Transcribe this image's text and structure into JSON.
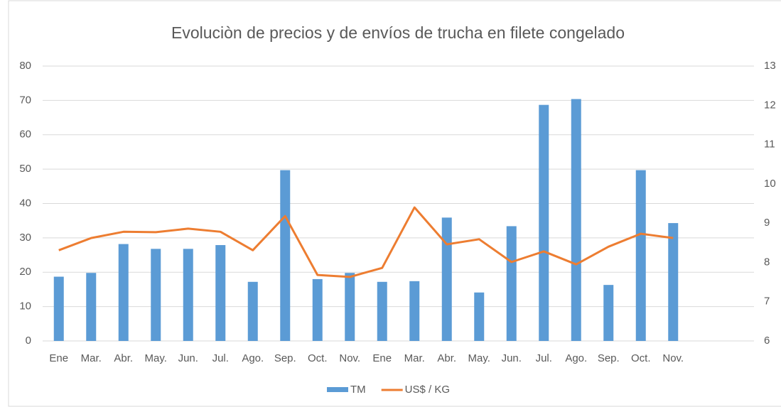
{
  "chart_data": {
    "type": "bar-line",
    "title": "Evoluciòn de precios y de envíos de trucha en filete congelado",
    "categories": [
      "Ene",
      "Mar.",
      "Abr.",
      "May.",
      "Jun.",
      "Jul.",
      "Ago.",
      "Sep.",
      "Oct.",
      "Nov.",
      "Ene",
      "Mar.",
      "Abr.",
      "May.",
      "Jun.",
      "Jul.",
      "Ago.",
      "Sep.",
      "Oct.",
      "Nov.",
      null,
      null
    ],
    "series": [
      {
        "name": "TM",
        "type": "bar",
        "color": "#5b9bd5",
        "values": [
          18.7,
          19.8,
          28.2,
          26.8,
          26.8,
          27.9,
          17.2,
          49.7,
          18,
          19.8,
          17.2,
          17.4,
          35.9,
          14.1,
          33.4,
          68.7,
          70.4,
          16.3,
          49.7,
          34.3,
          null,
          null
        ]
      },
      {
        "name": "US$ / KG",
        "type": "line",
        "axis": "y2",
        "color": "#ed7d31",
        "values": [
          8.31,
          8.62,
          8.78,
          8.77,
          8.86,
          8.78,
          8.31,
          9.18,
          7.68,
          7.63,
          7.86,
          9.4,
          8.46,
          8.59,
          8.01,
          8.28,
          7.95,
          8.4,
          8.73,
          8.62,
          null,
          null
        ]
      }
    ],
    "ylim": [
      0,
      80
    ],
    "yticks": [
      0,
      10,
      20,
      30,
      40,
      50,
      60,
      70,
      80
    ],
    "y2lim": [
      6,
      13
    ],
    "y2ticks": [
      6,
      7,
      8,
      9,
      10,
      11,
      12,
      13
    ],
    "grid": true,
    "legend": "bottom"
  }
}
